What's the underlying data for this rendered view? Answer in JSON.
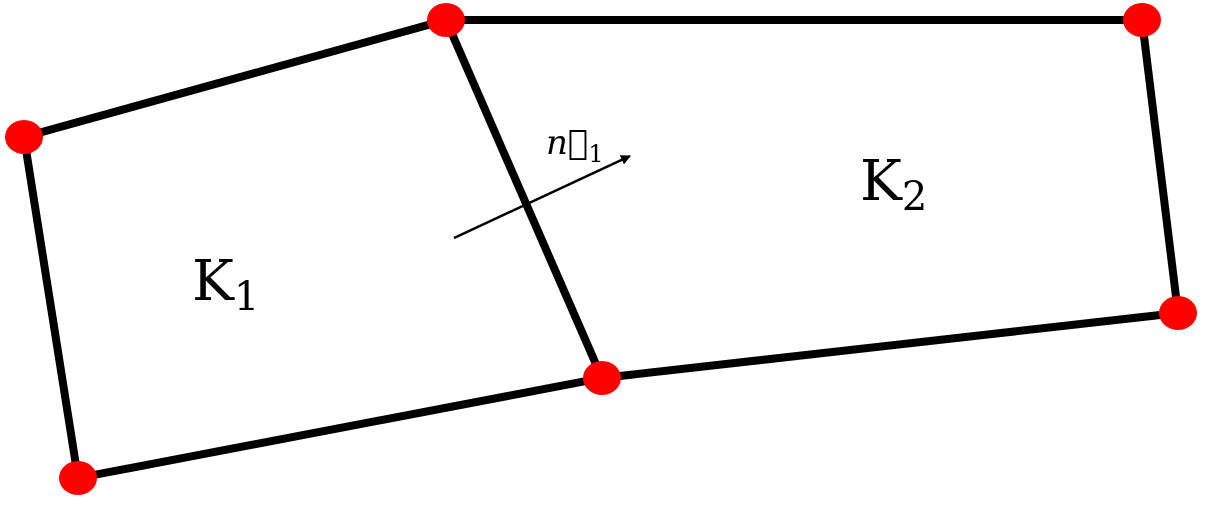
{
  "colors": {
    "edge": "#000000",
    "node": "#ff0000",
    "text": "#000000"
  },
  "cells": [
    {
      "name": "K1",
      "letter": "K",
      "sub": "1"
    },
    {
      "name": "K2",
      "letter": "K",
      "sub": "2"
    }
  ],
  "normal": {
    "vector_symbol": "n⃗",
    "sub": "1"
  },
  "mesh": {
    "node_count": 6,
    "edge_count": 7
  }
}
